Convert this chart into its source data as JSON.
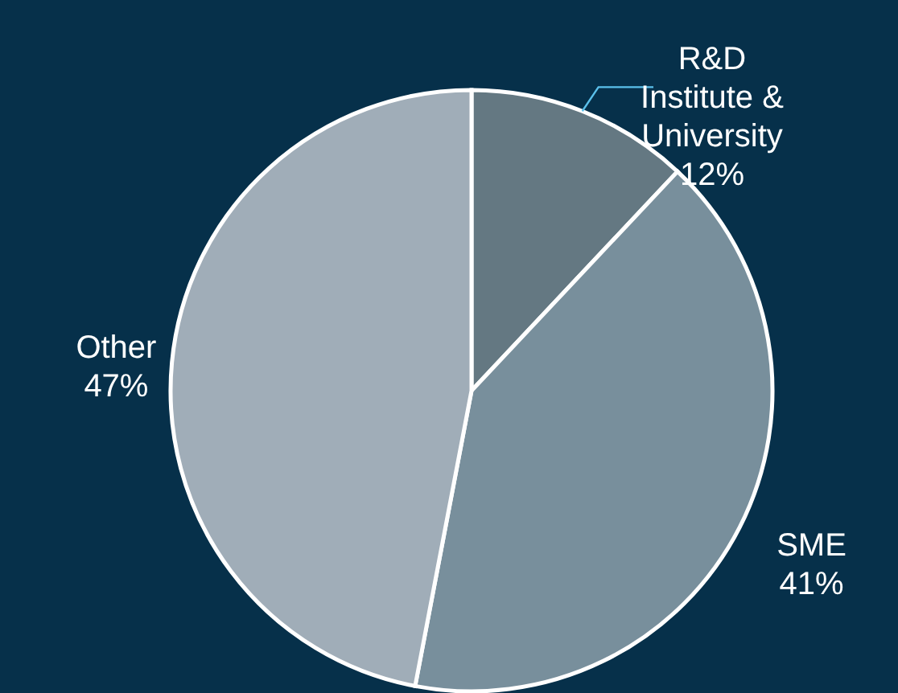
{
  "chart_data": {
    "type": "pie",
    "categories": [
      "R&D Institute & University",
      "SME",
      "Other"
    ],
    "values": [
      12,
      41,
      47
    ],
    "colors": [
      "#647882",
      "#788f9c",
      "#a0adb8"
    ],
    "value_labels": [
      "12%",
      "41%",
      "47%"
    ],
    "legend": false
  }
}
